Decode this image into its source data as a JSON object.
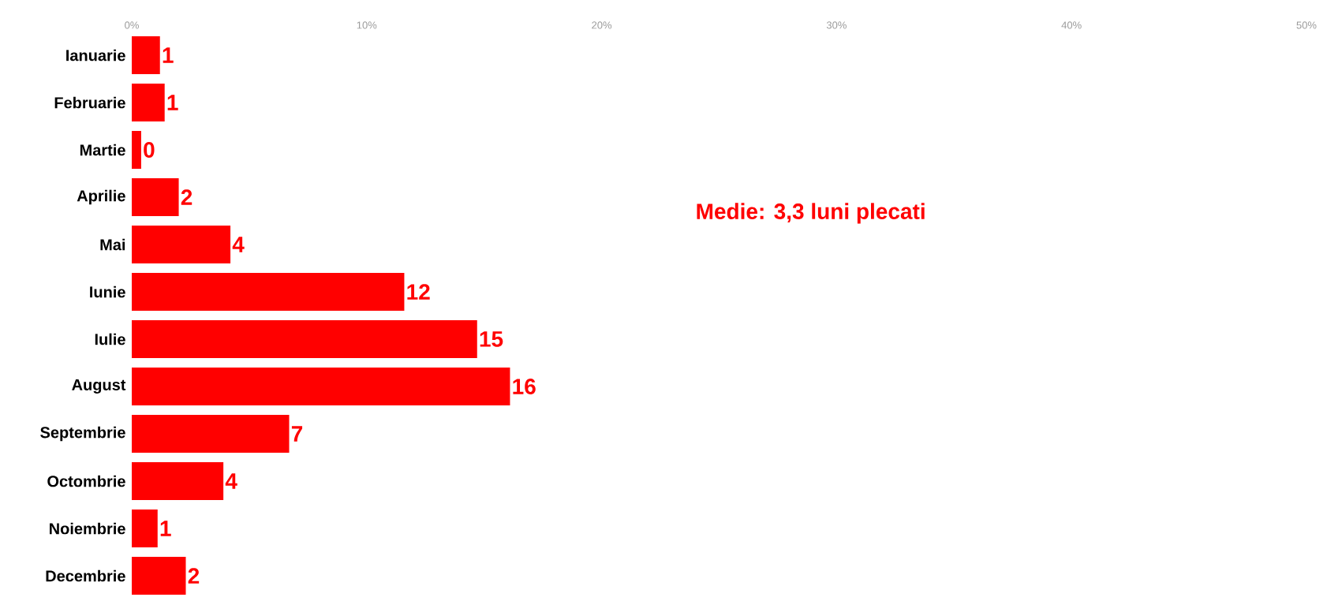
{
  "chart_data": {
    "type": "bar",
    "orientation": "horizontal",
    "categories": [
      "Ianuarie",
      "Februarie",
      "Martie",
      "Aprilie",
      "Mai",
      "Iunie",
      "Iulie",
      "August",
      "Septembrie",
      "Octombrie",
      "Noiembrie",
      "Decembrie"
    ],
    "values": [
      1.2,
      1.4,
      0.4,
      2.0,
      4.2,
      11.6,
      14.7,
      16.1,
      6.7,
      3.9,
      1.1,
      2.3
    ],
    "value_labels": [
      "1",
      "1",
      "0",
      "2",
      "4",
      "12",
      "15",
      "16",
      "7",
      "4",
      "1",
      "2"
    ],
    "color": "#ff0000",
    "xlim": [
      0,
      50
    ],
    "xticks": [
      {
        "value": 0,
        "label": "0%"
      },
      {
        "value": 10,
        "label": "10%"
      },
      {
        "value": 20,
        "label": "20%"
      },
      {
        "value": 30,
        "label": "30%"
      },
      {
        "value": 40,
        "label": "40%"
      },
      {
        "value": 50,
        "label": "50%"
      }
    ],
    "annotations": [
      "Medie: 3,3 luni plecati"
    ]
  }
}
